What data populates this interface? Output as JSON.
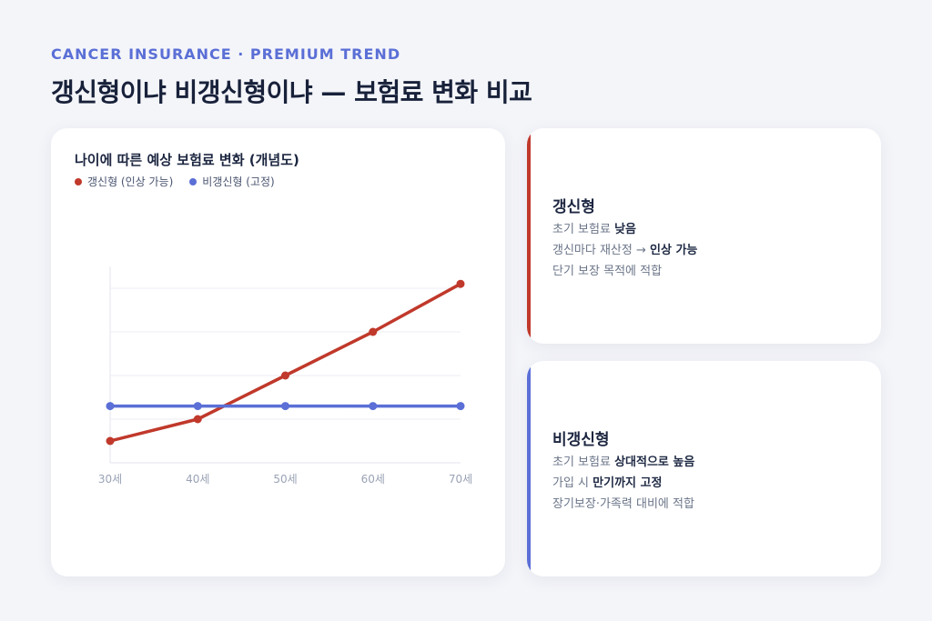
{
  "header": {
    "eyebrow": "CANCER INSURANCE · PREMIUM TREND",
    "title": "갱신형이냐 비갱신형이냐 — 보험료 변화 비교"
  },
  "colors": {
    "renewable": "#c0392b",
    "nonrenewable": "#5b6fd6",
    "accent": "#5a6fd6"
  },
  "chart_data": {
    "type": "line",
    "title": "나이에 따른 예상 보험료 변화 (개념도)",
    "categories": [
      "30세",
      "40세",
      "50세",
      "60세",
      "70세"
    ],
    "series": [
      {
        "name": "갱신형 (인상 가능)",
        "values": [
          0.5,
          1.0,
          2.0,
          3.0,
          4.1
        ],
        "color": "#c0392b"
      },
      {
        "name": "비갱신형 (고정)",
        "values": [
          1.3,
          1.3,
          1.3,
          1.3,
          1.3
        ],
        "color": "#5b6fd6"
      }
    ],
    "ylim": [
      0,
      4.5
    ],
    "grid": true,
    "legend": "top-left"
  },
  "cards": {
    "renewable": {
      "title": "갱신형",
      "lines": [
        {
          "text": "초기 보험료 ",
          "bold": "낮음"
        },
        {
          "text": "갱신마다 재산정 → ",
          "bold": "인상 가능"
        },
        {
          "text": "단기 보장 목적에 적합",
          "bold": ""
        }
      ]
    },
    "nonrenewable": {
      "title": "비갱신형",
      "lines": [
        {
          "text": "초기 보험료 ",
          "bold": "상대적으로 높음"
        },
        {
          "text": "가입 시 ",
          "bold": "만기까지 고정"
        },
        {
          "text": "장기보장·가족력 대비에 적합",
          "bold": ""
        }
      ]
    }
  }
}
